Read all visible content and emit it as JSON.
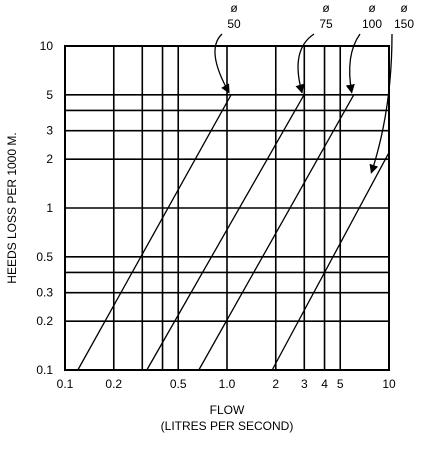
{
  "chart_data": {
    "type": "line",
    "xscale": "log",
    "yscale": "log",
    "xlim": [
      0.1,
      10
    ],
    "ylim": [
      0.1,
      10
    ],
    "xlabel": "FLOW",
    "xlabel2": "(LITRES PER SECOND)",
    "ylabel": "HEEDS LOSS PER 1000 M.",
    "x_ticks": [
      0.1,
      0.2,
      0.5,
      1.0,
      2,
      3,
      4,
      5,
      10
    ],
    "x_tick_labels": [
      "0.1",
      "0.2",
      "0.5",
      "1.0",
      "2",
      "3",
      "4",
      "5",
      "10"
    ],
    "y_ticks": [
      0.1,
      0.2,
      0.3,
      0.5,
      1,
      2,
      3,
      5,
      10
    ],
    "y_tick_labels": [
      "0.1",
      "0.2",
      "0.3",
      "0.5",
      "1",
      "2",
      "3",
      "5",
      "10"
    ],
    "x_gridlines": [
      0.2,
      0.3,
      0.4,
      0.5,
      1.0,
      2,
      3,
      4,
      5
    ],
    "y_gridlines": [
      0.2,
      0.3,
      0.4,
      0.5,
      1,
      2,
      3,
      4,
      5
    ],
    "series": [
      {
        "name": "ø 50",
        "points": [
          [
            0.12,
            0.1
          ],
          [
            1.06,
            5.0
          ]
        ]
      },
      {
        "name": "ø 75",
        "points": [
          [
            0.32,
            0.1
          ],
          [
            2.99,
            5.0
          ]
        ]
      },
      {
        "name": "ø 100",
        "points": [
          [
            0.67,
            0.1
          ],
          [
            6.06,
            5.0
          ]
        ]
      },
      {
        "name": "ø 150",
        "points": [
          [
            1.9,
            0.1
          ],
          [
            10.0,
            2.2
          ]
        ]
      }
    ]
  }
}
